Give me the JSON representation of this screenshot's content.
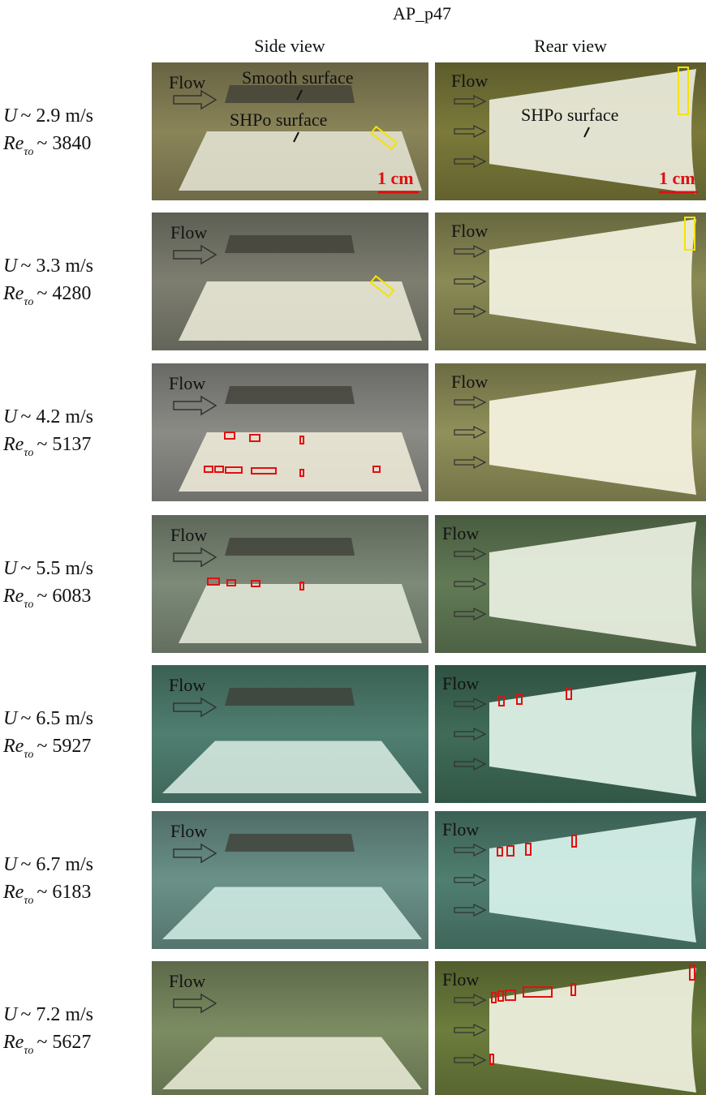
{
  "header": {
    "title": "AP_p47",
    "columns": [
      "Side view",
      "Rear view"
    ]
  },
  "symbols": {
    "velocity": "U",
    "reynolds": "Re",
    "subscript": "τo"
  },
  "annotations": {
    "flow": "Flow",
    "smooth": "Smooth surface",
    "shpo": "SHPo surface",
    "scale": "1 cm"
  },
  "rows": [
    {
      "velocity": "~ 2.9 m/s",
      "reynolds": "~ 3840"
    },
    {
      "velocity": "~ 3.3 m/s",
      "reynolds": "~ 4280"
    },
    {
      "velocity": "~ 4.2 m/s",
      "reynolds": "~ 5137"
    },
    {
      "velocity": "~ 5.5 m/s",
      "reynolds": "~ 6083"
    },
    {
      "velocity": "~ 6.5 m/s",
      "reynolds": "~ 5927"
    },
    {
      "velocity": "~ 6.7 m/s",
      "reynolds": "~ 6183"
    },
    {
      "velocity": "~ 7.2 m/s",
      "reynolds": "~ 5627"
    }
  ]
}
